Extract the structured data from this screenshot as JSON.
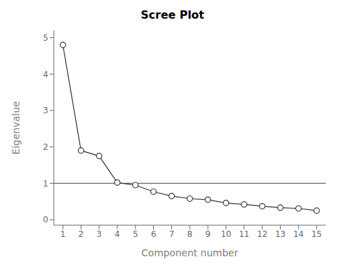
{
  "chart_data": {
    "type": "line",
    "title": "Scree Plot",
    "xlabel": "Component number",
    "ylabel": "Eigenvalue",
    "x": [
      1,
      2,
      3,
      4,
      5,
      6,
      7,
      8,
      9,
      10,
      11,
      12,
      13,
      14,
      15
    ],
    "values": [
      4.8,
      1.9,
      1.75,
      1.02,
      0.95,
      0.77,
      0.65,
      0.58,
      0.55,
      0.46,
      0.42,
      0.37,
      0.33,
      0.31,
      0.25
    ],
    "color": "#333333",
    "marker": "circle",
    "xlim": [
      0.5,
      15.5
    ],
    "xticks": [
      1,
      2,
      3,
      4,
      5,
      6,
      7,
      8,
      9,
      10,
      11,
      12,
      13,
      14,
      15
    ],
    "ylim": [
      -0.15,
      5.2
    ],
    "yticks": [
      0,
      1,
      2,
      3,
      4,
      5
    ],
    "hline": {
      "y": 1.0,
      "color": "#666666"
    },
    "grid": false
  }
}
